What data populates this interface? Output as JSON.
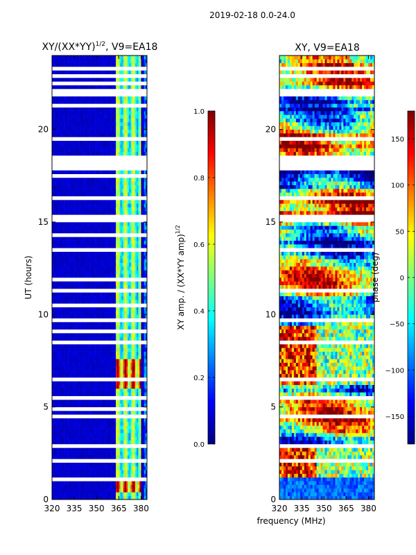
{
  "figure": {
    "suptitle": "2019-02-18 0.0-24.0",
    "xlabel_shared": "frequency (MHz)"
  },
  "colors": {
    "cmap": [
      "#00007f",
      "#0000ff",
      "#007fff",
      "#00ffff",
      "#7fff7f",
      "#ffff00",
      "#ff7f00",
      "#ff0000",
      "#7f0000"
    ],
    "gap": "#ffffff"
  },
  "chart_data": [
    {
      "type": "heatmap",
      "title_main": "XY/(XX*YY)",
      "title_exp": "1/2",
      "title_suffix": ", V9=EA18",
      "xlabel": "",
      "ylabel": "UT (hours)",
      "xlim": [
        320,
        384
      ],
      "ylim": [
        0,
        24
      ],
      "xticks": [
        320,
        335,
        350,
        365,
        380
      ],
      "yticks": [
        0,
        5,
        10,
        15,
        20
      ],
      "clim": [
        0.0,
        1.0
      ],
      "colorbar": {
        "label_main": "XY amp. / (XX*YY amp)",
        "label_exp": "1/2",
        "ticks": [
          "0.0",
          "0.2",
          "0.4",
          "0.6",
          "0.8",
          "1.0"
        ],
        "tick_values": [
          0.0,
          0.2,
          0.4,
          0.6,
          0.8,
          1.0
        ]
      },
      "background_value": 0.05,
      "active_band_mhz": [
        363,
        380
      ],
      "high_amplitude_hours": [
        [
          0.5,
          0.9
        ],
        [
          6.0,
          7.5
        ]
      ],
      "flagged_hours": [
        [
          0.25,
          0.3
        ],
        [
          1.05,
          1.15
        ],
        [
          2.0,
          2.1
        ],
        [
          2.9,
          3.0
        ],
        [
          3.8,
          3.9
        ],
        [
          4.5,
          4.6
        ],
        [
          4.9,
          5.0
        ],
        [
          5.4,
          5.5
        ],
        [
          6.45,
          6.6
        ],
        [
          8.5,
          8.6
        ],
        [
          9.1,
          9.2
        ],
        [
          9.7,
          9.8
        ],
        [
          10.5,
          10.6
        ],
        [
          11.3,
          11.4
        ],
        [
          11.9,
          12.0
        ],
        [
          12.6,
          12.7
        ],
        [
          13.4,
          13.5
        ],
        [
          14.2,
          14.3
        ],
        [
          14.6,
          14.7
        ],
        [
          15.1,
          15.3
        ],
        [
          16.2,
          16.3
        ],
        [
          17.4,
          17.5
        ],
        [
          17.85,
          18.6
        ],
        [
          19.4,
          19.5
        ],
        [
          20.6,
          20.7
        ],
        [
          21.3,
          21.4
        ],
        [
          21.9,
          22.2
        ],
        [
          22.4,
          22.5
        ],
        [
          22.9,
          23.0
        ],
        [
          23.3,
          23.4
        ]
      ]
    },
    {
      "type": "heatmap",
      "title": "XY, V9=EA18",
      "xlabel": "",
      "ylabel": "",
      "xlim": [
        320,
        384
      ],
      "ylim": [
        0,
        24
      ],
      "xticks": [
        320,
        335,
        350,
        365,
        380
      ],
      "yticks": [
        0,
        5,
        10,
        15,
        20
      ],
      "clim": [
        -180,
        180
      ],
      "colorbar": {
        "label": "phase (deg)",
        "ticks": [
          "−150",
          "−100",
          "−50",
          "0",
          "50",
          "100",
          "150"
        ],
        "tick_values": [
          -150,
          -100,
          -50,
          0,
          50,
          100,
          150
        ]
      },
      "flagged_hours": [
        [
          0.95,
          1.05
        ],
        [
          2.0,
          2.1
        ],
        [
          2.9,
          3.0
        ],
        [
          4.5,
          4.6
        ],
        [
          5.4,
          5.5
        ],
        [
          6.45,
          6.6
        ],
        [
          8.5,
          8.6
        ],
        [
          9.7,
          9.8
        ],
        [
          11.3,
          11.4
        ],
        [
          13.4,
          13.5
        ],
        [
          14.6,
          14.7
        ],
        [
          15.1,
          15.3
        ],
        [
          16.2,
          16.3
        ],
        [
          17.85,
          18.6
        ],
        [
          19.4,
          19.5
        ],
        [
          20.6,
          20.7
        ],
        [
          21.9,
          22.2
        ],
        [
          22.9,
          23.0
        ],
        [
          23.3,
          23.4
        ]
      ]
    }
  ]
}
